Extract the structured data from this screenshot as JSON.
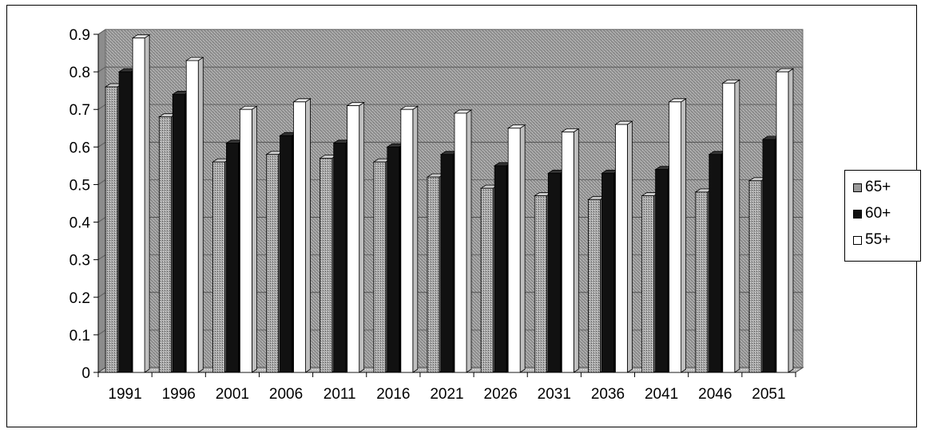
{
  "chart_data": {
    "type": "bar",
    "title": "",
    "xlabel": "",
    "ylabel": "",
    "ylim": [
      0,
      0.9
    ],
    "yticks": [
      "0",
      "0.1",
      "0.2",
      "0.3",
      "0.4",
      "0.5",
      "0.6",
      "0.7",
      "0.8",
      "0.9"
    ],
    "grid": true,
    "legend_position": "right",
    "categories": [
      "1991",
      "1996",
      "2001",
      "2006",
      "2011",
      "2016",
      "2021",
      "2026",
      "2031",
      "2036",
      "2041",
      "2046",
      "2051"
    ],
    "series": [
      {
        "name": "65+",
        "color": "#8a8a8a",
        "values": [
          0.76,
          0.68,
          0.56,
          0.58,
          0.57,
          0.56,
          0.52,
          0.49,
          0.47,
          0.46,
          0.47,
          0.48,
          0.51
        ]
      },
      {
        "name": "60+",
        "color": "#111111",
        "values": [
          0.8,
          0.74,
          0.61,
          0.63,
          0.61,
          0.6,
          0.58,
          0.55,
          0.53,
          0.53,
          0.54,
          0.58,
          0.62
        ]
      },
      {
        "name": "55+",
        "color": "#ffffff",
        "values": [
          0.89,
          0.83,
          0.7,
          0.72,
          0.71,
          0.7,
          0.69,
          0.65,
          0.64,
          0.66,
          0.72,
          0.77,
          0.8
        ]
      }
    ]
  }
}
